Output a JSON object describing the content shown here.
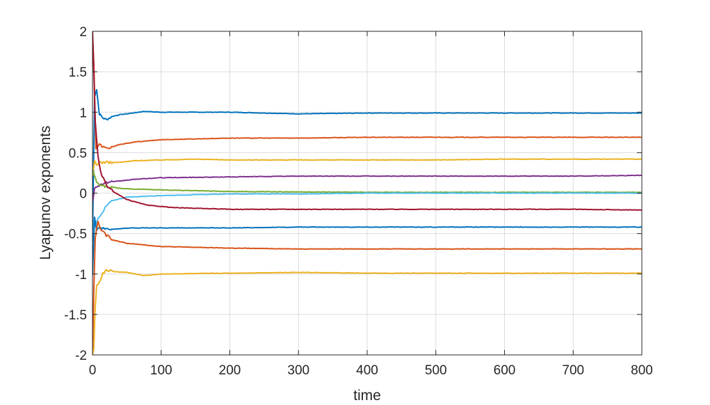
{
  "chart_data": {
    "type": "line",
    "title": "",
    "xlabel": "time",
    "ylabel": "Lyapunov exponents",
    "xlim": [
      0,
      800
    ],
    "ylim": [
      -2,
      2
    ],
    "xticks": [
      0,
      100,
      200,
      300,
      400,
      500,
      600,
      700,
      800
    ],
    "yticks": [
      -2,
      -1.5,
      -1,
      -0.5,
      0,
      0.5,
      1,
      1.5,
      2
    ],
    "xtick_labels": [
      "0",
      "100",
      "200",
      "300",
      "400",
      "500",
      "600",
      "700",
      "800"
    ],
    "ytick_labels": [
      "-2",
      "-1.5",
      "-1",
      "-0.5",
      "0",
      "0.5",
      "1",
      "1.5",
      "2"
    ],
    "grid": true,
    "legend": "none",
    "series": [
      {
        "color": "#0072BD",
        "x": [
          0,
          3,
          6,
          10,
          15,
          20,
          30,
          40,
          50,
          75,
          100,
          200,
          300,
          400,
          500,
          600,
          700,
          800
        ],
        "y": [
          -0.6,
          1.2,
          1.28,
          0.98,
          0.93,
          0.91,
          0.95,
          0.97,
          0.98,
          1.01,
          1.0,
          1.0,
          0.98,
          0.99,
          0.99,
          0.99,
          0.99,
          0.99
        ]
      },
      {
        "color": "#D95319",
        "x": [
          0,
          2,
          5,
          10,
          20,
          40,
          60,
          100,
          200,
          300,
          400,
          500,
          600,
          700,
          800
        ],
        "y": [
          2.0,
          1.6,
          0.55,
          0.6,
          0.55,
          0.6,
          0.63,
          0.66,
          0.68,
          0.68,
          0.69,
          0.69,
          0.69,
          0.69,
          0.69
        ]
      },
      {
        "color": "#EDB120",
        "x": [
          0,
          3,
          6,
          10,
          20,
          40,
          60,
          100,
          150,
          200,
          300,
          400,
          500,
          600,
          700,
          800
        ],
        "y": [
          0.2,
          0.4,
          0.35,
          0.38,
          0.38,
          0.38,
          0.4,
          0.41,
          0.42,
          0.41,
          0.41,
          0.41,
          0.41,
          0.42,
          0.42,
          0.42
        ]
      },
      {
        "color": "#7E2F8E",
        "x": [
          0,
          3,
          6,
          10,
          20,
          40,
          60,
          100,
          200,
          300,
          400,
          500,
          600,
          700,
          800
        ],
        "y": [
          -0.1,
          0.05,
          0.08,
          0.1,
          0.13,
          0.15,
          0.17,
          0.19,
          0.2,
          0.21,
          0.21,
          0.21,
          0.21,
          0.21,
          0.22
        ]
      },
      {
        "color": "#77AC30",
        "x": [
          0,
          3,
          6,
          10,
          20,
          40,
          60,
          100,
          150,
          200,
          300,
          400,
          500,
          600,
          700,
          800
        ],
        "y": [
          0.3,
          0.2,
          0.14,
          0.1,
          0.08,
          0.06,
          0.05,
          0.04,
          0.03,
          0.02,
          0.015,
          0.01,
          0.01,
          0.01,
          0.01,
          0.01
        ]
      },
      {
        "color": "#4DBEEE",
        "x": [
          0,
          3,
          6,
          10,
          15,
          20,
          30,
          50,
          100,
          150,
          200,
          300,
          400,
          500,
          600,
          700,
          800
        ],
        "y": [
          -0.5,
          -0.4,
          -0.35,
          -0.3,
          -0.24,
          -0.16,
          -0.09,
          -0.05,
          -0.03,
          -0.02,
          -0.01,
          -0.01,
          0.0,
          0.0,
          0.0,
          0.0,
          0.0
        ]
      },
      {
        "color": "#A2142F",
        "x": [
          0,
          2,
          4,
          8,
          12,
          20,
          30,
          50,
          80,
          120,
          200,
          300,
          400,
          500,
          600,
          700,
          800
        ],
        "y": [
          2.0,
          1.5,
          0.9,
          0.45,
          0.25,
          0.1,
          0.02,
          -0.08,
          -0.15,
          -0.18,
          -0.2,
          -0.2,
          -0.2,
          -0.2,
          -0.2,
          -0.2,
          -0.21
        ]
      },
      {
        "color": "#0072BD",
        "x": [
          0,
          3,
          6,
          10,
          20,
          40,
          60,
          100,
          200,
          300,
          400,
          500,
          600,
          700,
          800
        ],
        "y": [
          -1.0,
          -0.3,
          -0.45,
          -0.42,
          -0.45,
          -0.44,
          -0.43,
          -0.43,
          -0.43,
          -0.42,
          -0.42,
          -0.42,
          -0.42,
          -0.42,
          -0.42
        ]
      },
      {
        "color": "#D95319",
        "x": [
          0,
          2,
          4,
          8,
          12,
          20,
          30,
          50,
          100,
          200,
          300,
          400,
          500,
          600,
          700,
          800
        ],
        "y": [
          -2.0,
          -1.2,
          -0.55,
          -0.35,
          -0.45,
          -0.52,
          -0.58,
          -0.62,
          -0.66,
          -0.68,
          -0.69,
          -0.69,
          -0.69,
          -0.69,
          -0.69,
          -0.69
        ]
      },
      {
        "color": "#EDB120",
        "x": [
          0,
          2,
          4,
          6,
          10,
          15,
          20,
          30,
          50,
          75,
          100,
          200,
          300,
          400,
          500,
          600,
          700,
          800
        ],
        "y": [
          -2.0,
          -1.9,
          -1.4,
          -1.15,
          -1.1,
          -1.0,
          -0.95,
          -0.97,
          -0.98,
          -1.02,
          -1.0,
          -0.99,
          -0.98,
          -0.99,
          -0.99,
          -0.99,
          -0.99,
          -0.99
        ]
      }
    ]
  }
}
